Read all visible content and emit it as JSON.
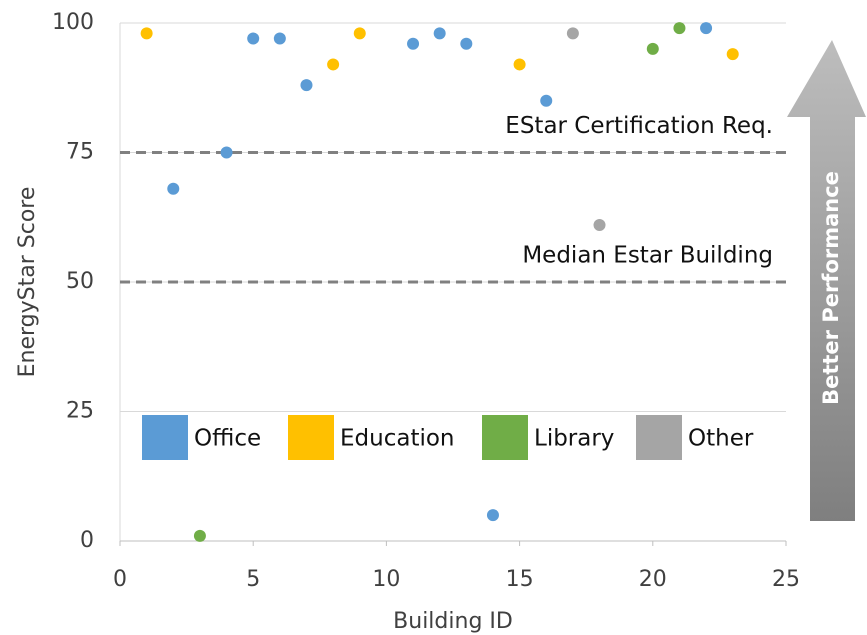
{
  "chart_data": {
    "type": "scatter",
    "x_label": "Building ID",
    "y_label": "EnergyStar Score",
    "xlim": [
      0,
      25
    ],
    "xticks": [
      0,
      5,
      10,
      15,
      20,
      25
    ],
    "ylim": [
      0,
      100
    ],
    "yticks": [
      0,
      25,
      50,
      75,
      100
    ],
    "grid": true,
    "series": [
      {
        "name": "Office",
        "color": "#5b9bd5",
        "x": [
          2,
          4,
          5,
          6,
          7,
          11,
          12,
          13,
          14,
          16,
          22
        ],
        "values": [
          68,
          75,
          97,
          97,
          88,
          96,
          98,
          96,
          5,
          85,
          99
        ]
      },
      {
        "name": "Education",
        "color": "#ffc000",
        "x": [
          1,
          8,
          9,
          15,
          23
        ],
        "values": [
          98,
          92,
          98,
          92,
          94
        ]
      },
      {
        "name": "Library",
        "color": "#70ad47",
        "x": [
          3,
          20,
          21
        ],
        "values": [
          1,
          95,
          99
        ]
      },
      {
        "name": "Other",
        "color": "#a5a5a5",
        "x": [
          17,
          18
        ],
        "values": [
          98,
          61
        ]
      }
    ],
    "reference_lines": [
      {
        "value": 75,
        "label": "EStar Certification Req."
      },
      {
        "value": 50,
        "label": "Median Estar Building"
      }
    ],
    "annotation": "Better Performance"
  }
}
